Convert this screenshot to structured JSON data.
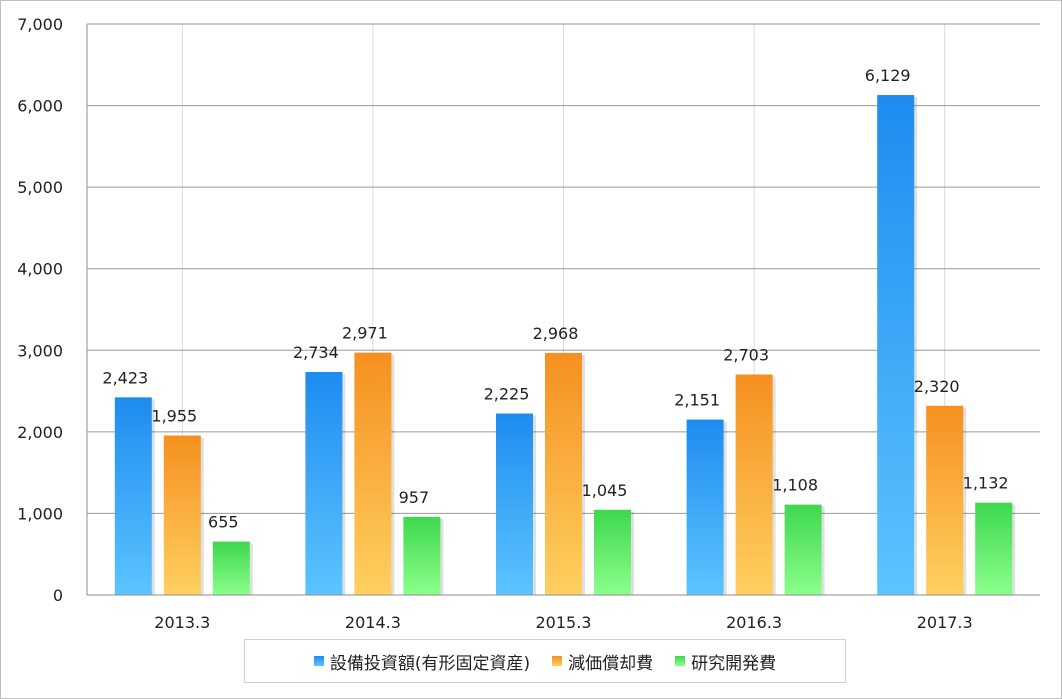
{
  "chart_data": {
    "type": "bar",
    "categories": [
      "2013.3",
      "2014.3",
      "2015.3",
      "2016.3",
      "2017.3"
    ],
    "series": [
      {
        "name": "設備投資額(有形固定資産)",
        "values": [
          2423,
          2734,
          2225,
          2151,
          6129
        ],
        "labels": [
          "2,423",
          "2,734",
          "2,225",
          "2,151",
          "6,129"
        ],
        "color_top": "#1e8cf0",
        "color_bottom": "#5cc4ff"
      },
      {
        "name": "減価償却費",
        "values": [
          1955,
          2971,
          2968,
          2703,
          2320
        ],
        "labels": [
          "1,955",
          "2,971",
          "2,968",
          "2,703",
          "2,320"
        ],
        "color_top": "#f59020",
        "color_bottom": "#ffd060"
      },
      {
        "name": "研究開発費",
        "values": [
          655,
          957,
          1045,
          1108,
          1132
        ],
        "labels": [
          "655",
          "957",
          "1,045",
          "1,108",
          "1,132"
        ],
        "color_top": "#3ed84e",
        "color_bottom": "#8cff8c"
      }
    ],
    "ylim": [
      0,
      7000
    ],
    "yticks": [
      0,
      1000,
      2000,
      3000,
      4000,
      5000,
      6000,
      7000
    ],
    "ytick_labels": [
      "0",
      "1,000",
      "2,000",
      "3,000",
      "4,000",
      "5,000",
      "6,000",
      "7,000"
    ],
    "grid": true,
    "legend_position": "bottom",
    "title": "",
    "xlabel": "",
    "ylabel": ""
  }
}
